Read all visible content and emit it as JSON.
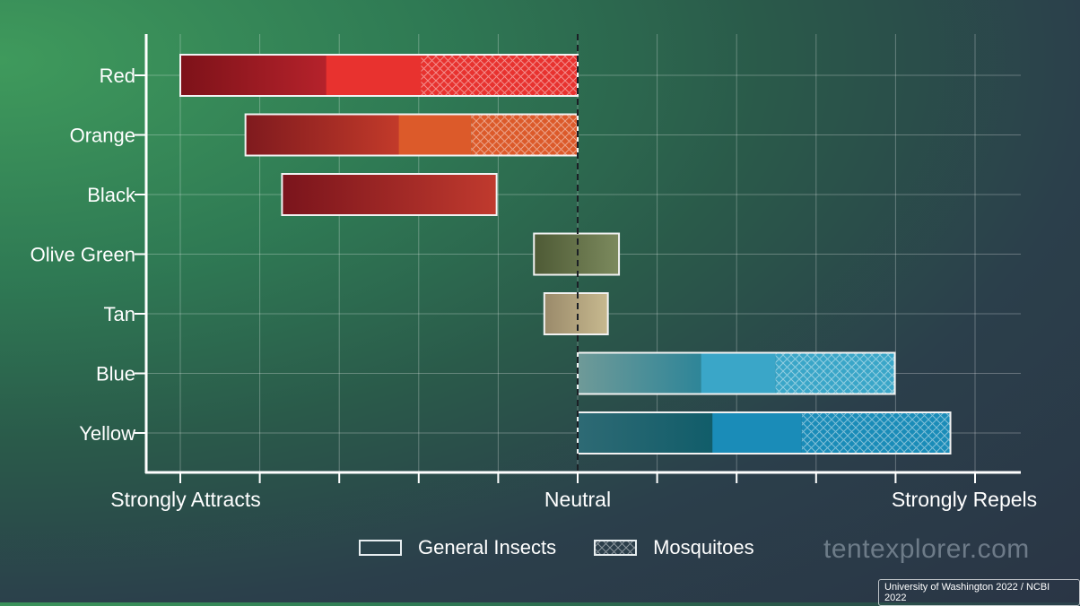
{
  "chart_data": {
    "type": "bar",
    "orientation": "horizontal",
    "title": "",
    "xlabel": "",
    "ylabel": "",
    "x_tick_labels": [
      {
        "value": -5,
        "label": "Strongly Attracts"
      },
      {
        "value": 0,
        "label": "Neutral"
      },
      {
        "value": 5,
        "label": "Strongly Repels"
      }
    ],
    "xlim": [
      -5.4,
      5.4
    ],
    "grid": true,
    "categories": [
      "Red",
      "Orange",
      "Black",
      "Olive Green",
      "Tan",
      "Blue",
      "Yellow"
    ],
    "series": [
      {
        "name": "General Insects",
        "pattern": "solid",
        "ranges": [
          [
            -5.0,
            -1.97
          ],
          [
            -4.18,
            -1.34
          ],
          [
            -3.72,
            -1.02
          ],
          [
            -0.55,
            0.52
          ],
          [
            -0.42,
            0.38
          ],
          [
            0.0,
            2.49
          ],
          [
            0.0,
            2.82
          ]
        ]
      },
      {
        "name": "Mosquitoes",
        "pattern": "crosshatch",
        "ranges": [
          [
            -1.97,
            0.0
          ],
          [
            -1.34,
            0.0
          ],
          null,
          null,
          null,
          [
            2.49,
            3.99
          ],
          [
            2.82,
            4.69
          ]
        ]
      }
    ],
    "legend_position": "bottom"
  },
  "colors": {
    "Red": [
      "#7d1219",
      "#b5222b",
      "#e8322f"
    ],
    "Orange": [
      "#7f1a1e",
      "#c23a2a",
      "#dc5a2a"
    ],
    "Black": [
      "#7a141c",
      "#c03a2e",
      "#e07220"
    ],
    "Olive Green": [
      "#4e5a35",
      "#7c8a5e",
      "#7d8a5e"
    ],
    "Tan": [
      "#9a8a6a",
      "#c7b98f",
      "#cdbd90"
    ],
    "Blue": [
      "#6f9a98",
      "#2e8598",
      "#3aa6c8"
    ],
    "Yellow": [
      "#2e6a74",
      "#115d6a",
      "#1a8cb8"
    ]
  },
  "watermark": "tentexplorer.com",
  "source": "University of Washington 2022 / NCBI 2022"
}
